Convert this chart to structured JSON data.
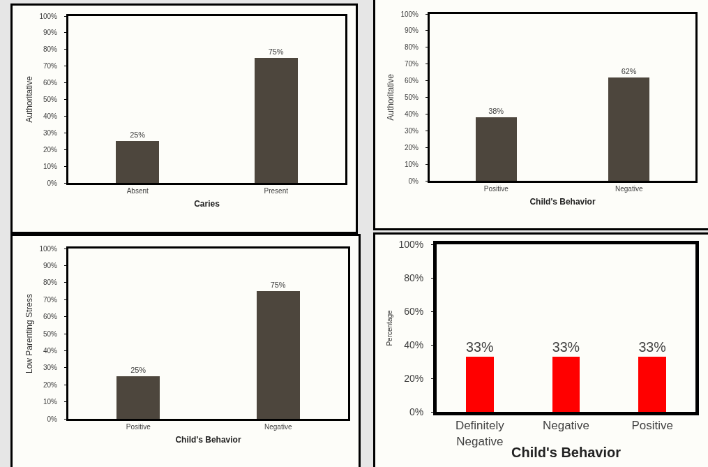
{
  "chart_data": [
    {
      "type": "bar",
      "categories": [
        "Absent",
        "Present"
      ],
      "values": [
        25,
        75
      ],
      "value_labels": [
        "25%",
        "75%"
      ],
      "color": "#4d463d",
      "ylabel": "Authoritative",
      "xlabel": "Caries",
      "ylim": [
        0,
        100
      ],
      "yticks": [
        {
          "value": 0,
          "label": "0%"
        },
        {
          "value": 10,
          "label": "10%"
        },
        {
          "value": 20,
          "label": "20%"
        },
        {
          "value": 30,
          "label": "30%"
        },
        {
          "value": 40,
          "label": "40%"
        },
        {
          "value": 50,
          "label": "50%"
        },
        {
          "value": 60,
          "label": "60%"
        },
        {
          "value": 70,
          "label": "70%"
        },
        {
          "value": 80,
          "label": "80%"
        },
        {
          "value": 90,
          "label": "90%"
        },
        {
          "value": 100,
          "label": "100%"
        }
      ],
      "grid": false
    },
    {
      "type": "bar",
      "categories": [
        "Positive",
        "Negative"
      ],
      "values": [
        38,
        62
      ],
      "value_labels": [
        "38%",
        "62%"
      ],
      "color": "#4d463d",
      "ylabel": "Authoritative",
      "xlabel": "Child's Behavior",
      "ylim": [
        0,
        100
      ],
      "yticks": [
        {
          "value": 0,
          "label": "0%"
        },
        {
          "value": 10,
          "label": "10%"
        },
        {
          "value": 20,
          "label": "20%"
        },
        {
          "value": 30,
          "label": "30%"
        },
        {
          "value": 40,
          "label": "40%"
        },
        {
          "value": 50,
          "label": "50%"
        },
        {
          "value": 60,
          "label": "60%"
        },
        {
          "value": 70,
          "label": "70%"
        },
        {
          "value": 80,
          "label": "80%"
        },
        {
          "value": 90,
          "label": "90%"
        },
        {
          "value": 100,
          "label": "100%"
        }
      ],
      "grid": false
    },
    {
      "type": "bar",
      "categories": [
        "Positive",
        "Negative"
      ],
      "values": [
        25,
        75
      ],
      "value_labels": [
        "25%",
        "75%"
      ],
      "color": "#4d463d",
      "ylabel": "Low Parenting Stress",
      "xlabel": "Child's Behavior",
      "ylim": [
        0,
        100
      ],
      "yticks": [
        {
          "value": 0,
          "label": "0%"
        },
        {
          "value": 10,
          "label": "10%"
        },
        {
          "value": 20,
          "label": "20%"
        },
        {
          "value": 30,
          "label": "30%"
        },
        {
          "value": 40,
          "label": "40%"
        },
        {
          "value": 50,
          "label": "50%"
        },
        {
          "value": 60,
          "label": "60%"
        },
        {
          "value": 70,
          "label": "70%"
        },
        {
          "value": 80,
          "label": "80%"
        },
        {
          "value": 90,
          "label": "90%"
        },
        {
          "value": 100,
          "label": "100%"
        }
      ],
      "grid": false
    },
    {
      "type": "bar",
      "categories": [
        "Definitely Negative",
        "Negative",
        "Positive"
      ],
      "values": [
        33,
        33,
        33
      ],
      "value_labels": [
        "33%",
        "33%",
        "33%"
      ],
      "color": "#ff0000",
      "ylabel": "Percentage",
      "xlabel": "Child's Behavior",
      "ylim": [
        0,
        100
      ],
      "yticks": [
        {
          "value": 0,
          "label": "0%"
        },
        {
          "value": 20,
          "label": "20%"
        },
        {
          "value": 40,
          "label": "40%"
        },
        {
          "value": 60,
          "label": "60%"
        },
        {
          "value": 80,
          "label": "80%"
        },
        {
          "value": 100,
          "label": "100%"
        }
      ],
      "grid": false
    }
  ]
}
